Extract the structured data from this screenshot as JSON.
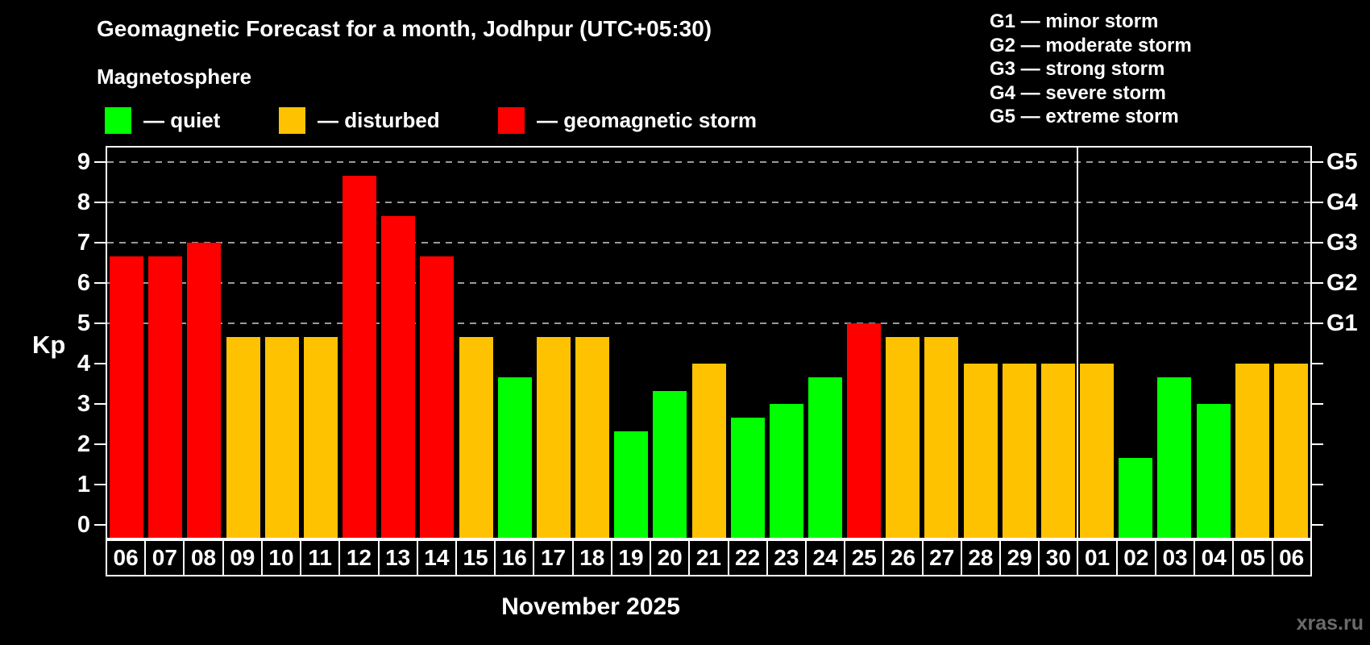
{
  "header": {
    "title": "Geomagnetic Forecast for a month, Jodhpur (UTC+05:30)",
    "subtitle": "Magnetosphere"
  },
  "legend": {
    "items": [
      {
        "status": "quiet",
        "label": "— quiet"
      },
      {
        "status": "disturbed",
        "label": "— disturbed"
      },
      {
        "status": "storm",
        "label": "— geomagnetic storm"
      }
    ]
  },
  "storm_scale_legend": {
    "items": [
      "G1 — minor storm",
      "G2 — moderate storm",
      "G3 — strong storm",
      "G4 — severe storm",
      "G5 — extreme storm"
    ]
  },
  "chart_data": {
    "type": "bar",
    "title": "Geomagnetic Forecast for a month, Jodhpur (UTC+05:30)",
    "ylabel": "Kp",
    "xlabel": "November 2025",
    "ylim": [
      0,
      9
    ],
    "yticks": [
      0,
      1,
      2,
      3,
      4,
      5,
      6,
      7,
      8,
      9
    ],
    "gridlines_at_kp": [
      5,
      6,
      7,
      8,
      9
    ],
    "right_axis": [
      {
        "kp": 5,
        "label": "G1"
      },
      {
        "kp": 6,
        "label": "G2"
      },
      {
        "kp": 7,
        "label": "G3"
      },
      {
        "kp": 8,
        "label": "G4"
      },
      {
        "kp": 9,
        "label": "G5"
      }
    ],
    "categories": [
      "06",
      "07",
      "08",
      "09",
      "10",
      "11",
      "12",
      "13",
      "14",
      "15",
      "16",
      "17",
      "18",
      "19",
      "20",
      "21",
      "22",
      "23",
      "24",
      "25",
      "26",
      "27",
      "28",
      "29",
      "30",
      "01",
      "02",
      "03",
      "04",
      "05",
      "06"
    ],
    "values": [
      6.67,
      6.67,
      7,
      4.67,
      4.67,
      4.67,
      8.67,
      7.67,
      6.67,
      4.67,
      3.67,
      4.67,
      4.67,
      2.33,
      3.33,
      4,
      2.67,
      3,
      3.67,
      5,
      4.67,
      4.67,
      4,
      4,
      4,
      4,
      1.67,
      3.67,
      3,
      4,
      4
    ],
    "statuses": [
      "storm",
      "storm",
      "storm",
      "disturbed",
      "disturbed",
      "disturbed",
      "storm",
      "storm",
      "storm",
      "disturbed",
      "quiet",
      "disturbed",
      "disturbed",
      "quiet",
      "quiet",
      "disturbed",
      "quiet",
      "quiet",
      "quiet",
      "storm",
      "disturbed",
      "disturbed",
      "disturbed",
      "disturbed",
      "disturbed",
      "disturbed",
      "quiet",
      "quiet",
      "quiet",
      "disturbed",
      "disturbed"
    ],
    "status_colors": {
      "quiet": "#00ff00",
      "disturbed": "#ffc200",
      "storm": "#ff0000"
    },
    "month_separator_after_index": 24,
    "legend_position": "top",
    "grid": "dashed-storm-levels-only"
  },
  "footer": {
    "watermark": "xras.ru"
  }
}
